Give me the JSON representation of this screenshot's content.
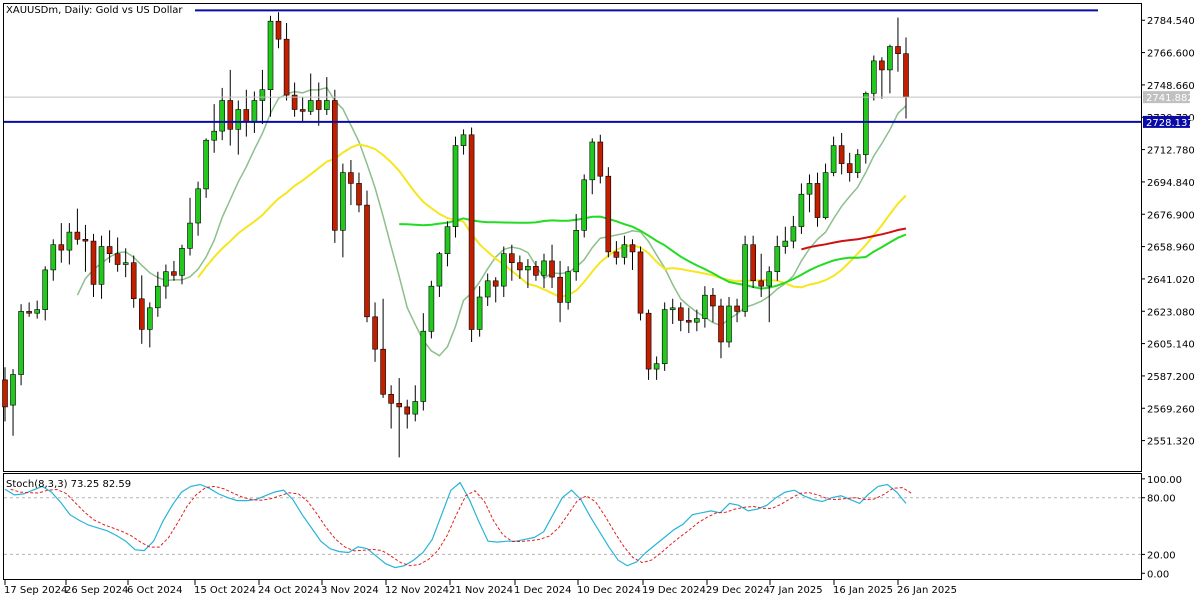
{
  "window": {
    "title": "XAUUSDm, Daily:  Gold vs US Dollar",
    "indicator_label": "Stoch(8,3,3) 73.25 82.59"
  },
  "colors": {
    "bull": "#22c81e",
    "bear": "#c21e00",
    "ma_fast": "#8cbf8c",
    "ma_yellow": "#f5e61e",
    "ma_green": "#22dc22",
    "ma_red": "#d01010",
    "hline": "#0a0aa6",
    "price_marker": "#c0c0c0",
    "stoch_main": "#28b4d8",
    "stoch_signal": "#e02020",
    "grid_dash": "#b4b4b4"
  },
  "chart_data": {
    "type": "candlestick",
    "symbol": "XAUUSDm",
    "timeframe": "Daily",
    "ylim": [
      2535,
      2793
    ],
    "price_ticks": [
      "2784.540",
      "2766.600",
      "2748.660",
      "2730.720",
      "2712.780",
      "2694.840",
      "2676.900",
      "2658.960",
      "2641.020",
      "2623.080",
      "2605.140",
      "2587.200",
      "2569.260",
      "2551.320"
    ],
    "x_labels": [
      "17 Sep 2024",
      "26 Sep 2024",
      "6 Oct 2024",
      "15 Oct 2024",
      "24 Oct 2024",
      "3 Nov 2024",
      "12 Nov 2024",
      "21 Nov 2024",
      "1 Dec 2024",
      "10 Dec 2024",
      "19 Dec 2024",
      "29 Dec 2024",
      "7 Jan 2025",
      "16 Jan 2025",
      "26 Jan 2025"
    ],
    "current_price_label": "2741.882",
    "horizontal_line_price_label": "2728.137",
    "current_price": 2741.882,
    "horizontal_lines": [
      2790.0,
      2728.137
    ],
    "candles": [
      {
        "o": 2585,
        "h": 2592,
        "l": 2562,
        "c": 2570
      },
      {
        "o": 2571,
        "h": 2591,
        "l": 2554,
        "c": 2588
      },
      {
        "o": 2588,
        "h": 2627,
        "l": 2582,
        "c": 2623
      },
      {
        "o": 2623,
        "h": 2628,
        "l": 2620,
        "c": 2622
      },
      {
        "o": 2622,
        "h": 2629,
        "l": 2619,
        "c": 2624
      },
      {
        "o": 2624,
        "h": 2648,
        "l": 2618,
        "c": 2646
      },
      {
        "o": 2646,
        "h": 2663,
        "l": 2640,
        "c": 2660
      },
      {
        "o": 2660,
        "h": 2672,
        "l": 2650,
        "c": 2657
      },
      {
        "o": 2657,
        "h": 2672,
        "l": 2649,
        "c": 2667
      },
      {
        "o": 2667,
        "h": 2680,
        "l": 2660,
        "c": 2663
      },
      {
        "o": 2663,
        "h": 2671,
        "l": 2645,
        "c": 2662
      },
      {
        "o": 2662,
        "h": 2666,
        "l": 2631,
        "c": 2638
      },
      {
        "o": 2638,
        "h": 2665,
        "l": 2630,
        "c": 2659
      },
      {
        "o": 2659,
        "h": 2668,
        "l": 2650,
        "c": 2655
      },
      {
        "o": 2655,
        "h": 2664,
        "l": 2645,
        "c": 2649
      },
      {
        "o": 2649,
        "h": 2658,
        "l": 2642,
        "c": 2650
      },
      {
        "o": 2650,
        "h": 2654,
        "l": 2625,
        "c": 2630
      },
      {
        "o": 2630,
        "h": 2643,
        "l": 2605,
        "c": 2613
      },
      {
        "o": 2613,
        "h": 2628,
        "l": 2603,
        "c": 2625
      },
      {
        "o": 2625,
        "h": 2645,
        "l": 2620,
        "c": 2637
      },
      {
        "o": 2637,
        "h": 2649,
        "l": 2630,
        "c": 2645
      },
      {
        "o": 2645,
        "h": 2651,
        "l": 2640,
        "c": 2643
      },
      {
        "o": 2643,
        "h": 2660,
        "l": 2638,
        "c": 2658
      },
      {
        "o": 2658,
        "h": 2686,
        "l": 2654,
        "c": 2672
      },
      {
        "o": 2672,
        "h": 2695,
        "l": 2665,
        "c": 2691
      },
      {
        "o": 2691,
        "h": 2719,
        "l": 2686,
        "c": 2718
      },
      {
        "o": 2718,
        "h": 2738,
        "l": 2711,
        "c": 2723
      },
      {
        "o": 2723,
        "h": 2747,
        "l": 2718,
        "c": 2740
      },
      {
        "o": 2740,
        "h": 2757,
        "l": 2715,
        "c": 2724
      },
      {
        "o": 2724,
        "h": 2740,
        "l": 2710,
        "c": 2735
      },
      {
        "o": 2735,
        "h": 2746,
        "l": 2720,
        "c": 2728
      },
      {
        "o": 2728,
        "h": 2745,
        "l": 2722,
        "c": 2740
      },
      {
        "o": 2740,
        "h": 2757,
        "l": 2727,
        "c": 2746
      },
      {
        "o": 2746,
        "h": 2787,
        "l": 2731,
        "c": 2784
      },
      {
        "o": 2784,
        "h": 2789,
        "l": 2769,
        "c": 2774
      },
      {
        "o": 2774,
        "h": 2783,
        "l": 2740,
        "c": 2743
      },
      {
        "o": 2743,
        "h": 2750,
        "l": 2731,
        "c": 2735
      },
      {
        "o": 2735,
        "h": 2742,
        "l": 2728,
        "c": 2734
      },
      {
        "o": 2734,
        "h": 2755,
        "l": 2732,
        "c": 2740
      },
      {
        "o": 2740,
        "h": 2750,
        "l": 2726,
        "c": 2735
      },
      {
        "o": 2735,
        "h": 2753,
        "l": 2732,
        "c": 2740
      },
      {
        "o": 2740,
        "h": 2746,
        "l": 2661,
        "c": 2668
      },
      {
        "o": 2668,
        "h": 2705,
        "l": 2653,
        "c": 2700
      },
      {
        "o": 2700,
        "h": 2707,
        "l": 2682,
        "c": 2694
      },
      {
        "o": 2694,
        "h": 2700,
        "l": 2678,
        "c": 2682
      },
      {
        "o": 2682,
        "h": 2690,
        "l": 2617,
        "c": 2620
      },
      {
        "o": 2620,
        "h": 2628,
        "l": 2595,
        "c": 2602
      },
      {
        "o": 2602,
        "h": 2630,
        "l": 2575,
        "c": 2577
      },
      {
        "o": 2577,
        "h": 2582,
        "l": 2558,
        "c": 2572
      },
      {
        "o": 2572,
        "h": 2586,
        "l": 2542,
        "c": 2570
      },
      {
        "o": 2570,
        "h": 2574,
        "l": 2558,
        "c": 2566
      },
      {
        "o": 2566,
        "h": 2582,
        "l": 2562,
        "c": 2573
      },
      {
        "o": 2573,
        "h": 2622,
        "l": 2568,
        "c": 2612
      },
      {
        "o": 2612,
        "h": 2640,
        "l": 2608,
        "c": 2637
      },
      {
        "o": 2637,
        "h": 2656,
        "l": 2631,
        "c": 2655
      },
      {
        "o": 2655,
        "h": 2673,
        "l": 2648,
        "c": 2670
      },
      {
        "o": 2670,
        "h": 2720,
        "l": 2664,
        "c": 2715
      },
      {
        "o": 2715,
        "h": 2724,
        "l": 2710,
        "c": 2721
      },
      {
        "o": 2721,
        "h": 2725,
        "l": 2606,
        "c": 2613
      },
      {
        "o": 2613,
        "h": 2637,
        "l": 2609,
        "c": 2631
      },
      {
        "o": 2631,
        "h": 2644,
        "l": 2626,
        "c": 2640
      },
      {
        "o": 2640,
        "h": 2642,
        "l": 2628,
        "c": 2637
      },
      {
        "o": 2637,
        "h": 2659,
        "l": 2631,
        "c": 2655
      },
      {
        "o": 2655,
        "h": 2660,
        "l": 2640,
        "c": 2650
      },
      {
        "o": 2650,
        "h": 2654,
        "l": 2641,
        "c": 2646
      },
      {
        "o": 2646,
        "h": 2652,
        "l": 2636,
        "c": 2648
      },
      {
        "o": 2648,
        "h": 2651,
        "l": 2640,
        "c": 2643
      },
      {
        "o": 2643,
        "h": 2655,
        "l": 2636,
        "c": 2651
      },
      {
        "o": 2651,
        "h": 2660,
        "l": 2636,
        "c": 2642
      },
      {
        "o": 2642,
        "h": 2651,
        "l": 2617,
        "c": 2628
      },
      {
        "o": 2628,
        "h": 2648,
        "l": 2624,
        "c": 2645
      },
      {
        "o": 2645,
        "h": 2677,
        "l": 2640,
        "c": 2668
      },
      {
        "o": 2668,
        "h": 2699,
        "l": 2664,
        "c": 2696
      },
      {
        "o": 2696,
        "h": 2719,
        "l": 2688,
        "c": 2717
      },
      {
        "o": 2717,
        "h": 2721,
        "l": 2694,
        "c": 2698
      },
      {
        "o": 2698,
        "h": 2703,
        "l": 2653,
        "c": 2656
      },
      {
        "o": 2656,
        "h": 2662,
        "l": 2649,
        "c": 2653
      },
      {
        "o": 2653,
        "h": 2665,
        "l": 2649,
        "c": 2660
      },
      {
        "o": 2660,
        "h": 2663,
        "l": 2646,
        "c": 2656
      },
      {
        "o": 2656,
        "h": 2659,
        "l": 2618,
        "c": 2622
      },
      {
        "o": 2622,
        "h": 2624,
        "l": 2585,
        "c": 2591
      },
      {
        "o": 2591,
        "h": 2598,
        "l": 2585,
        "c": 2594
      },
      {
        "o": 2594,
        "h": 2628,
        "l": 2590,
        "c": 2624
      },
      {
        "o": 2624,
        "h": 2630,
        "l": 2616,
        "c": 2625
      },
      {
        "o": 2625,
        "h": 2628,
        "l": 2612,
        "c": 2618
      },
      {
        "o": 2618,
        "h": 2625,
        "l": 2611,
        "c": 2617
      },
      {
        "o": 2617,
        "h": 2624,
        "l": 2612,
        "c": 2619
      },
      {
        "o": 2619,
        "h": 2637,
        "l": 2614,
        "c": 2632
      },
      {
        "o": 2632,
        "h": 2636,
        "l": 2617,
        "c": 2626
      },
      {
        "o": 2626,
        "h": 2630,
        "l": 2597,
        "c": 2606
      },
      {
        "o": 2606,
        "h": 2631,
        "l": 2603,
        "c": 2626
      },
      {
        "o": 2626,
        "h": 2630,
        "l": 2617,
        "c": 2623
      },
      {
        "o": 2623,
        "h": 2665,
        "l": 2620,
        "c": 2660
      },
      {
        "o": 2660,
        "h": 2665,
        "l": 2636,
        "c": 2640
      },
      {
        "o": 2640,
        "h": 2655,
        "l": 2631,
        "c": 2637
      },
      {
        "o": 2637,
        "h": 2648,
        "l": 2617,
        "c": 2645
      },
      {
        "o": 2645,
        "h": 2665,
        "l": 2640,
        "c": 2659
      },
      {
        "o": 2659,
        "h": 2670,
        "l": 2655,
        "c": 2662
      },
      {
        "o": 2662,
        "h": 2676,
        "l": 2658,
        "c": 2670
      },
      {
        "o": 2670,
        "h": 2694,
        "l": 2666,
        "c": 2688
      },
      {
        "o": 2688,
        "h": 2699,
        "l": 2678,
        "c": 2694
      },
      {
        "o": 2694,
        "h": 2700,
        "l": 2670,
        "c": 2675
      },
      {
        "o": 2675,
        "h": 2705,
        "l": 2674,
        "c": 2700
      },
      {
        "o": 2700,
        "h": 2720,
        "l": 2698,
        "c": 2715
      },
      {
        "o": 2715,
        "h": 2722,
        "l": 2699,
        "c": 2705
      },
      {
        "o": 2705,
        "h": 2711,
        "l": 2695,
        "c": 2700
      },
      {
        "o": 2700,
        "h": 2713,
        "l": 2697,
        "c": 2710
      },
      {
        "o": 2710,
        "h": 2745,
        "l": 2705,
        "c": 2744
      },
      {
        "o": 2744,
        "h": 2765,
        "l": 2740,
        "c": 2762
      },
      {
        "o": 2762,
        "h": 2764,
        "l": 2741,
        "c": 2757
      },
      {
        "o": 2757,
        "h": 2771,
        "l": 2744,
        "c": 2770
      },
      {
        "o": 2770,
        "h": 2786,
        "l": 2756,
        "c": 2766
      },
      {
        "o": 2766,
        "h": 2775,
        "l": 2730,
        "c": 2742
      }
    ],
    "indicator": {
      "name": "Stoch(8,3,3)",
      "main": 73.25,
      "signal": 82.59,
      "ylim": [
        -5,
        103
      ],
      "ticks": [
        "100.00",
        "80.00",
        "20.00",
        "0.00"
      ],
      "levels": [
        80,
        20
      ],
      "k_values": [
        89,
        83,
        84,
        88,
        92,
        86,
        75,
        62,
        56,
        51,
        48,
        45,
        40,
        34,
        25,
        24,
        34,
        55,
        72,
        86,
        92,
        94,
        90,
        84,
        80,
        77,
        77,
        78,
        82,
        86,
        88,
        78,
        62,
        48,
        34,
        26,
        23,
        22,
        28,
        26,
        18,
        10,
        6,
        8,
        14,
        22,
        36,
        62,
        88,
        96,
        78,
        55,
        34,
        33,
        34,
        34,
        36,
        38,
        44,
        62,
        80,
        88,
        78,
        60,
        44,
        28,
        14,
        8,
        12,
        22,
        30,
        38,
        46,
        52,
        62,
        64,
        66,
        64,
        74,
        72,
        66,
        68,
        72,
        80,
        86,
        88,
        82,
        78,
        76,
        80,
        82,
        78,
        74,
        84,
        92,
        94,
        86,
        74
      ]
    }
  }
}
